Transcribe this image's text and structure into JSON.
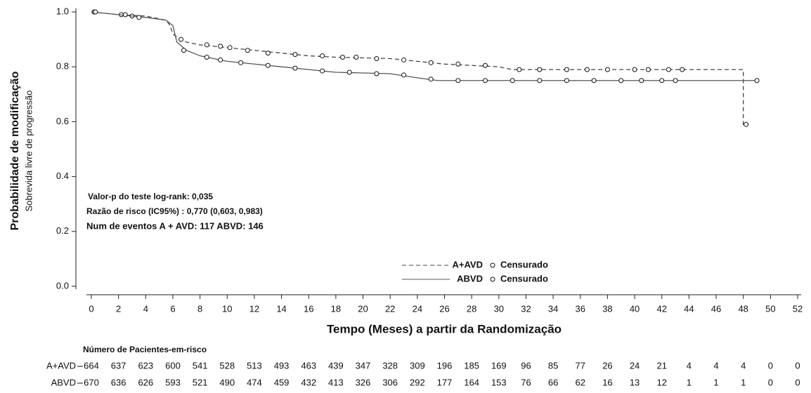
{
  "chart_data": {
    "type": "step",
    "y_label": "Probabilidade de modificação",
    "y_sublabel": "Sobrevida livre de progressão",
    "x_label": "Tempo (Meses) a partir da Randomização",
    "annotations": [
      "Valor-p do teste log-rank:  0,035",
      "Razão de risco     (IC95%) : 0,770 (0,603, 0,983)",
      "Num de eventos A + AVD: 117 ABVD: 146"
    ],
    "xlim": [
      0,
      52
    ],
    "xticks": [
      0,
      2,
      4,
      6,
      8,
      10,
      12,
      14,
      16,
      18,
      20,
      22,
      24,
      26,
      28,
      30,
      32,
      34,
      36,
      38,
      40,
      42,
      44,
      46,
      48,
      50,
      52
    ],
    "ylim": [
      0,
      1
    ],
    "yticks": [
      {
        "value": 0,
        "label": "0.0"
      },
      0.2,
      0.4,
      0.6,
      0.8,
      {
        "value": 1,
        "label": "1.0"
      }
    ],
    "series": [
      {
        "name": "A+AVD",
        "color": "#444444",
        "line_style": "dashed",
        "censored_name": "Censurado",
        "x": [
          0,
          2,
          4,
          5.5,
          5.8,
          6,
          6.5,
          7,
          8,
          9,
          10,
          12,
          14,
          16,
          18,
          22,
          24,
          26,
          30,
          31,
          48,
          48,
          48.4
        ],
        "values": [
          1.0,
          0.99,
          0.985,
          0.97,
          0.95,
          0.92,
          0.9,
          0.89,
          0.88,
          0.875,
          0.87,
          0.86,
          0.85,
          0.84,
          0.835,
          0.83,
          0.82,
          0.81,
          0.8,
          0.79,
          0.79,
          0.59,
          0.59
        ],
        "censored_x": [
          0.2,
          2.2,
          3,
          6.6,
          8.5,
          9.5,
          10.2,
          11.5,
          13,
          15,
          17,
          18.5,
          19.5,
          21,
          23,
          25,
          27,
          29,
          31.5,
          33,
          35,
          36.5,
          38,
          40,
          41,
          42.5,
          43.5,
          48.2
        ],
        "censored_y": [
          1.0,
          0.99,
          0.985,
          0.9,
          0.88,
          0.875,
          0.87,
          0.86,
          0.85,
          0.845,
          0.84,
          0.835,
          0.835,
          0.83,
          0.825,
          0.815,
          0.81,
          0.805,
          0.79,
          0.79,
          0.79,
          0.79,
          0.79,
          0.79,
          0.79,
          0.79,
          0.79,
          0.59
        ],
        "at_risk": [
          664,
          637,
          623,
          600,
          541,
          528,
          513,
          493,
          463,
          439,
          347,
          328,
          309,
          196,
          185,
          169,
          96,
          85,
          77,
          26,
          24,
          21,
          4,
          4,
          4,
          0,
          0
        ]
      },
      {
        "name": "ABVD",
        "color": "#555555",
        "line_style": "solid",
        "censored_name": "Censurado",
        "x": [
          0,
          2,
          4,
          5.5,
          6,
          6.3,
          7,
          8,
          10,
          12,
          14,
          16,
          18,
          22,
          24,
          25.5,
          49
        ],
        "values": [
          1.0,
          0.99,
          0.98,
          0.97,
          0.95,
          0.89,
          0.86,
          0.84,
          0.82,
          0.81,
          0.8,
          0.79,
          0.78,
          0.775,
          0.76,
          0.75,
          0.75
        ],
        "censored_x": [
          0.3,
          2.5,
          3.5,
          6.8,
          8.5,
          9.5,
          11,
          13,
          15,
          17,
          19,
          21,
          23,
          25,
          27,
          29,
          31,
          33,
          35,
          37,
          39,
          40.5,
          42,
          43,
          49
        ],
        "censored_y": [
          1.0,
          0.99,
          0.98,
          0.86,
          0.835,
          0.825,
          0.815,
          0.805,
          0.795,
          0.785,
          0.78,
          0.775,
          0.77,
          0.755,
          0.75,
          0.75,
          0.75,
          0.75,
          0.75,
          0.75,
          0.75,
          0.75,
          0.75,
          0.75,
          0.75
        ],
        "at_risk": [
          670,
          636,
          626,
          593,
          521,
          490,
          474,
          459,
          432,
          413,
          326,
          306,
          292,
          177,
          164,
          153,
          76,
          66,
          62,
          16,
          13,
          12,
          1,
          1,
          1,
          0,
          0
        ]
      }
    ],
    "at_risk_title": "Número de Pacientes-em-risco"
  }
}
